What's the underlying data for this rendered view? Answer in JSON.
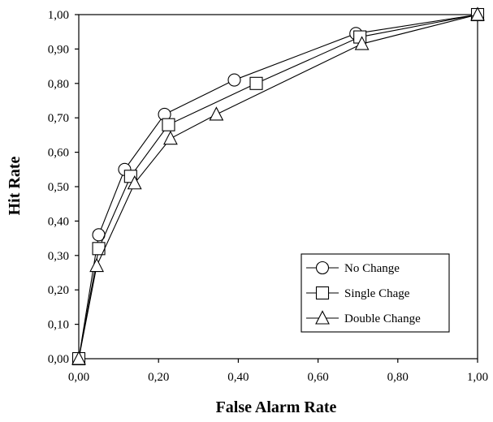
{
  "chart_data": {
    "type": "line",
    "xlabel": "False Alarm Rate",
    "ylabel": "Hit Rate",
    "xlim": [
      0,
      1
    ],
    "ylim": [
      0,
      1
    ],
    "x_ticks": [
      "0,00",
      "0,20",
      "0,40",
      "0,60",
      "0,80",
      "1,00"
    ],
    "y_ticks": [
      "0,00",
      "0,10",
      "0,20",
      "0,30",
      "0,40",
      "0,50",
      "0,60",
      "0,70",
      "0,80",
      "0,90",
      "1,00"
    ],
    "grid": false,
    "legend_position": "bottom-right",
    "series": [
      {
        "name": "No Change",
        "marker": "circle",
        "x": [
          0.0,
          0.05,
          0.115,
          0.215,
          0.39,
          0.695,
          1.0
        ],
        "y": [
          0.0,
          0.36,
          0.55,
          0.71,
          0.81,
          0.945,
          1.0
        ]
      },
      {
        "name": "Single Chage",
        "marker": "square",
        "x": [
          0.0,
          0.05,
          0.13,
          0.225,
          0.445,
          0.705,
          1.0
        ],
        "y": [
          0.0,
          0.32,
          0.53,
          0.68,
          0.8,
          0.935,
          1.0
        ]
      },
      {
        "name": "Double Change",
        "marker": "triangle",
        "x": [
          0.0,
          0.045,
          0.14,
          0.23,
          0.345,
          0.71,
          1.0
        ],
        "y": [
          0.0,
          0.27,
          0.51,
          0.64,
          0.71,
          0.915,
          1.0
        ]
      }
    ]
  }
}
